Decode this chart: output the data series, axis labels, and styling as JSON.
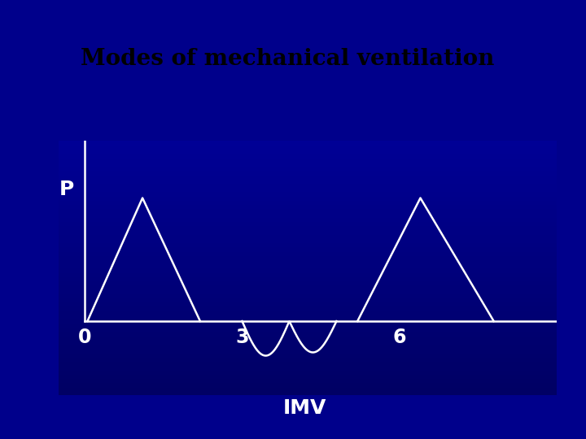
{
  "title": "Modes of mechanical ventilation",
  "title_fontsize": 20,
  "title_bg_color": "#ffff88",
  "title_border_color": "#00ffff",
  "bg_color": "#00008B",
  "line_color": "#ffffff",
  "ylabel": "P",
  "xlabel": "IMV",
  "xticks": [
    0,
    3,
    6
  ],
  "xlim": [
    -0.5,
    9.0
  ],
  "ylim": [
    -0.9,
    2.2
  ],
  "axis_color": "#ffffff",
  "text_color": "#ffffff",
  "mech_breath_1": {
    "x_start": 0.05,
    "x_peak": 1.1,
    "x_end": 2.2,
    "y_peak": 1.5
  },
  "mech_breath_2": {
    "x_start": 5.2,
    "x_peak": 6.4,
    "x_end": 7.8,
    "y_peak": 1.5
  },
  "spont_x_start": 3.0,
  "spont_x_end": 4.8,
  "spont_amp_below": 0.42,
  "spont_amp_above": 0.38
}
